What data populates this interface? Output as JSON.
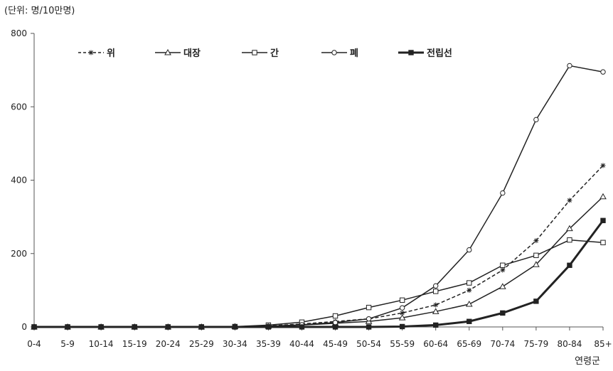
{
  "chart_data": {
    "type": "line",
    "unit_label": "(단위: 명/10만명)",
    "xlabel": "연령군",
    "ylabel": "",
    "ylim": [
      0,
      800
    ],
    "yticks": [
      0,
      200,
      400,
      600,
      800
    ],
    "grid": false,
    "legend_position": "top",
    "categories": [
      "0-4",
      "5-9",
      "10-14",
      "15-19",
      "20-24",
      "25-29",
      "30-34",
      "35-39",
      "40-44",
      "45-49",
      "50-54",
      "55-59",
      "60-64",
      "65-69",
      "70-74",
      "75-79",
      "80-84",
      "85+"
    ],
    "series": [
      {
        "name": "위",
        "style": "dashed",
        "marker": "star",
        "color": "#222222",
        "values": [
          0,
          0,
          0,
          0,
          0,
          0,
          1,
          3,
          8,
          15,
          22,
          38,
          60,
          100,
          155,
          235,
          345,
          440
        ]
      },
      {
        "name": "대장",
        "style": "solid",
        "marker": "triangle",
        "color": "#222222",
        "values": [
          0,
          0,
          0,
          0,
          0,
          0,
          1,
          2,
          5,
          10,
          15,
          25,
          42,
          62,
          110,
          170,
          268,
          355
        ]
      },
      {
        "name": "간",
        "style": "solid",
        "marker": "square",
        "color": "#222222",
        "values": [
          0,
          0,
          0,
          0,
          0,
          0,
          1,
          5,
          13,
          30,
          53,
          73,
          97,
          120,
          168,
          195,
          237,
          230
        ]
      },
      {
        "name": "폐",
        "style": "solid",
        "marker": "circle",
        "color": "#222222",
        "values": [
          0,
          0,
          0,
          0,
          0,
          0,
          0,
          2,
          6,
          12,
          22,
          52,
          112,
          210,
          365,
          565,
          712,
          695
        ]
      },
      {
        "name": "전립선",
        "style": "bold",
        "marker": "filled-square",
        "color": "#222222",
        "values": [
          0,
          0,
          0,
          0,
          0,
          0,
          0,
          0,
          0,
          0,
          0,
          1,
          5,
          15,
          38,
          70,
          168,
          290
        ]
      }
    ]
  }
}
